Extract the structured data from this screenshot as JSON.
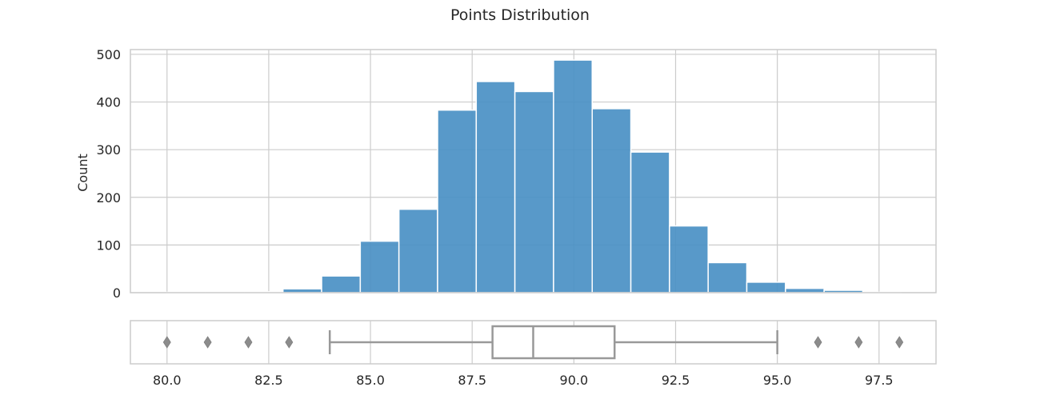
{
  "chart_data": {
    "type": "histogram",
    "title": "Points Distribution",
    "ylabel": "Count",
    "xlabel": "",
    "xlim": [
      79.1,
      98.9
    ],
    "ylim": [
      0,
      510
    ],
    "grid": true,
    "bar_color": "#4a90c4",
    "box_color": "#999999",
    "xticks": [
      80.0,
      82.5,
      85.0,
      87.5,
      90.0,
      92.5,
      95.0,
      97.5
    ],
    "xtick_labels": [
      "80.0",
      "82.5",
      "85.0",
      "87.5",
      "90.0",
      "92.5",
      "95.0",
      "97.5"
    ],
    "yticks": [
      0,
      100,
      200,
      300,
      400,
      500
    ],
    "ytick_labels": [
      "0",
      "100",
      "200",
      "300",
      "400",
      "500"
    ],
    "bins": {
      "edges": [
        80.0,
        80.95,
        81.9,
        82.85,
        83.8,
        84.75,
        85.7,
        86.65,
        87.6,
        88.55,
        89.5,
        90.45,
        91.4,
        92.35,
        93.3,
        94.25,
        95.2,
        96.15,
        97.1,
        98.05
      ],
      "counts": [
        1,
        1,
        2,
        8,
        35,
        108,
        175,
        383,
        443,
        422,
        488,
        386,
        295,
        140,
        63,
        22,
        9,
        5,
        1
      ]
    },
    "boxplot": {
      "whisker_low": 84,
      "q1": 88,
      "median": 89,
      "q3": 91,
      "whisker_high": 95,
      "outliers": [
        80,
        81,
        82,
        83,
        96,
        97,
        98
      ]
    }
  }
}
